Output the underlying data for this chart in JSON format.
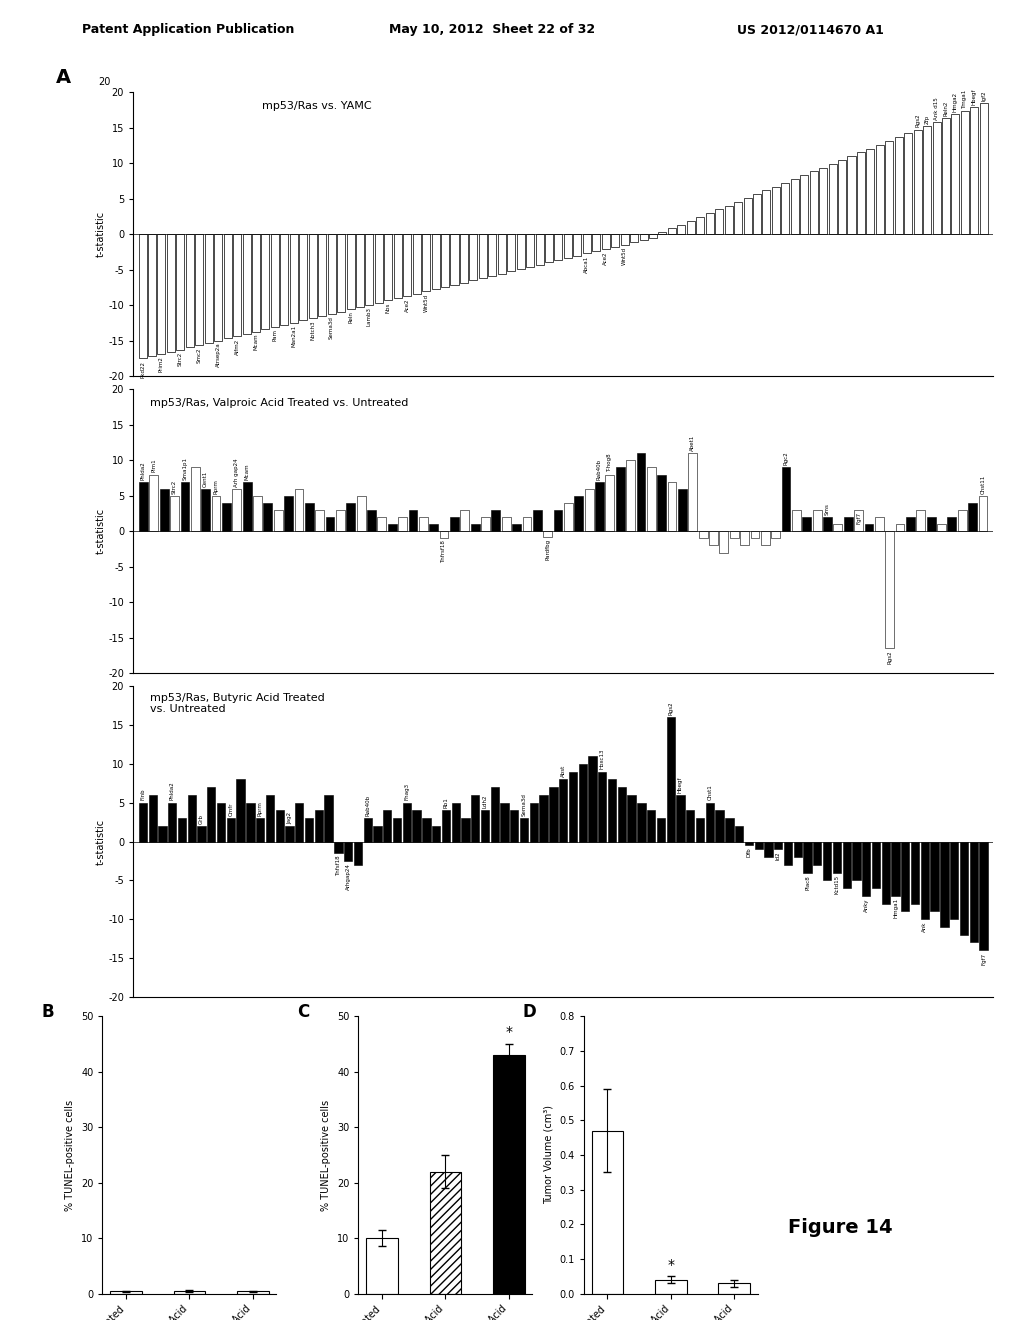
{
  "header_left": "Patent Application Publication",
  "header_mid": "May 10, 2012  Sheet 22 of 32",
  "header_right": "US 2012/0114670 A1",
  "figure_label": "Figure 14",
  "panel_A_label": "A",
  "panel_A1_title": "mp53/Ras vs. YAMC",
  "panel_A2_title": "mp53/Ras, Valproic Acid Treated vs. Untreated",
  "panel_A3_title": "mp53/Ras, Butyric Acid Treated\nvs. Untreated",
  "ylabel": "t-statistic",
  "panel_B_title": "B",
  "panel_C_title": "C",
  "panel_D_title": "D",
  "panel_B_ylabel": "% TUNEL-positive cells",
  "panel_C_ylabel": "% TUNEL-positive cells",
  "panel_D_ylabel": "Tumor Volume (cm³)",
  "panel_BCD_categories": [
    "Untreated",
    "Valproic Acid",
    "Butyric Acid"
  ],
  "panel_B_values": [
    0.4,
    0.5,
    0.4
  ],
  "panel_B_errors": [
    0.15,
    0.15,
    0.1
  ],
  "panel_C_values": [
    10.0,
    22.0,
    43.0
  ],
  "panel_C_errors": [
    1.5,
    3.0,
    2.0
  ],
  "panel_D_values": [
    0.47,
    0.04,
    0.03
  ],
  "panel_D_errors": [
    0.12,
    0.01,
    0.01
  ],
  "panel_B_ylim": [
    0,
    50
  ],
  "panel_C_ylim": [
    0,
    50
  ],
  "panel_D_ylim": [
    0.0,
    0.8
  ]
}
